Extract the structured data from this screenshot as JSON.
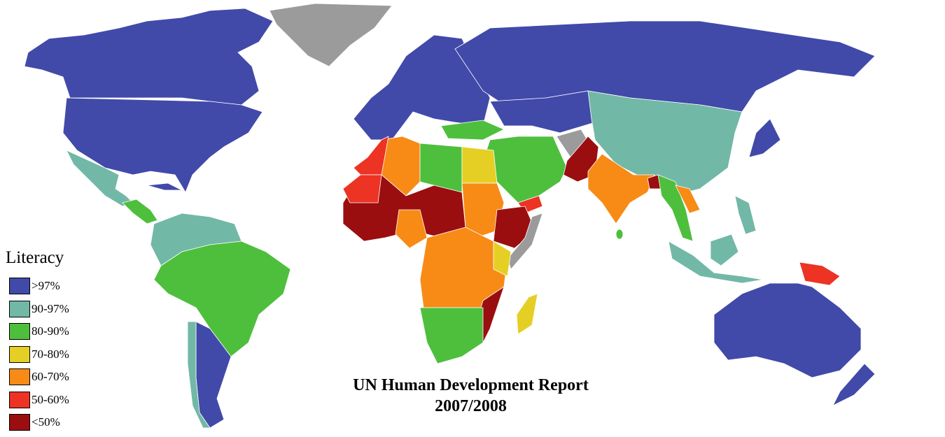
{
  "legend": {
    "title": "Literacy",
    "items": [
      {
        "label": ">97%",
        "color": "#414aa9"
      },
      {
        "label": "90-97%",
        "color": "#72b8a6"
      },
      {
        "label": "80-90%",
        "color": "#4ebf3d"
      },
      {
        "label": "70-80%",
        "color": "#e6cf25"
      },
      {
        "label": "60-70%",
        "color": "#f78b16"
      },
      {
        "label": "50-60%",
        "color": "#ec3324"
      },
      {
        "label": "<50%",
        "color": "#9b0e0f"
      }
    ],
    "no_data_color": "#9b9b9b"
  },
  "title": {
    "line1": "UN Human Development Report",
    "line2": "2007/2008"
  }
}
